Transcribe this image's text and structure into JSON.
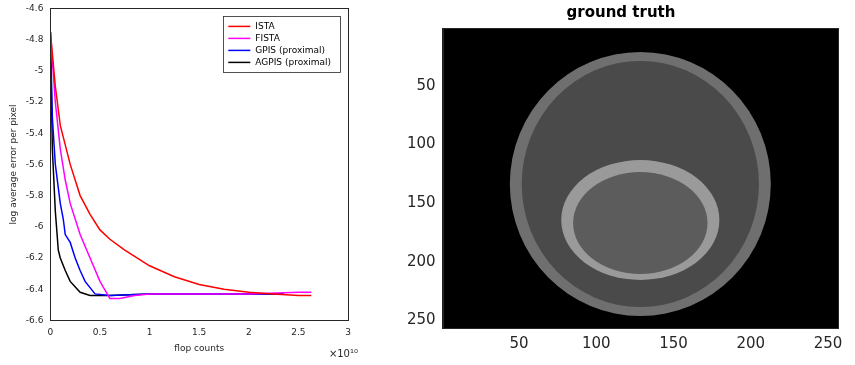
{
  "chart_data": [
    {
      "type": "line",
      "xlabel": "flop counts",
      "ylabel": "log average error per pixel",
      "xlim": [
        0,
        3
      ],
      "xticks": [
        0,
        0.5,
        1,
        1.5,
        2,
        2.5,
        3
      ],
      "ylim": [
        -6.6,
        -4.6
      ],
      "yticks": [
        -6.6,
        -6.4,
        -6.2,
        -6,
        -5.8,
        -5.6,
        -5.4,
        -5.2,
        -5,
        -4.8,
        -4.6
      ],
      "grid": false,
      "legend": "top-right",
      "annotations": [
        {
          "text": "×10¹⁰"
        }
      ],
      "series": [
        {
          "name": "ISTA",
          "color": "#ff0000",
          "x": [
            0,
            0.05,
            0.1,
            0.2,
            0.3,
            0.4,
            0.5,
            0.6,
            0.75,
            1.0,
            1.25,
            1.5,
            1.75,
            2.0,
            2.25,
            2.5,
            2.63
          ],
          "values": [
            -4.75,
            -5.1,
            -5.35,
            -5.6,
            -5.8,
            -5.92,
            -6.02,
            -6.08,
            -6.15,
            -6.25,
            -6.32,
            -6.37,
            -6.4,
            -6.42,
            -6.43,
            -6.44,
            -6.44
          ]
        },
        {
          "name": "FISTA",
          "color": "#ff00ff",
          "x": [
            0,
            0.05,
            0.1,
            0.15,
            0.2,
            0.3,
            0.4,
            0.5,
            0.6,
            0.7,
            0.85,
            1.0,
            1.5,
            2.0,
            2.5,
            2.63
          ],
          "values": [
            -4.75,
            -5.2,
            -5.5,
            -5.7,
            -5.85,
            -6.05,
            -6.2,
            -6.35,
            -6.46,
            -6.46,
            -6.44,
            -6.43,
            -6.43,
            -6.43,
            -6.42,
            -6.42
          ]
        },
        {
          "name": "GPIS (proximal)",
          "color": "#0000ff",
          "x": [
            0,
            0.02,
            0.05,
            0.08,
            0.1,
            0.13,
            0.15,
            0.2,
            0.25,
            0.3,
            0.35,
            0.45,
            0.6,
            1.0,
            1.5,
            2.0,
            2.35
          ],
          "values": [
            -4.75,
            -5.3,
            -5.6,
            -5.75,
            -5.85,
            -5.95,
            -6.05,
            -6.1,
            -6.2,
            -6.28,
            -6.35,
            -6.43,
            -6.44,
            -6.43,
            -6.43,
            -6.43,
            -6.43
          ]
        },
        {
          "name": "AGPIS (proximal)",
          "color": "#000000",
          "x": [
            0,
            0.02,
            0.05,
            0.08,
            0.1,
            0.15,
            0.2,
            0.3,
            0.4,
            0.6,
            1.0,
            1.5,
            2.0,
            2.35
          ],
          "values": [
            -4.75,
            -5.5,
            -5.9,
            -6.15,
            -6.2,
            -6.28,
            -6.35,
            -6.42,
            -6.44,
            -6.44,
            -6.43,
            -6.43,
            -6.43,
            -6.43
          ]
        }
      ]
    },
    {
      "type": "image",
      "title": "ground truth",
      "xlim": [
        0.5,
        256.5
      ],
      "ylim": [
        256.5,
        0.5
      ],
      "xticks": [
        50,
        100,
        150,
        200,
        250
      ],
      "yticks": [
        50,
        100,
        150,
        200,
        250
      ],
      "grid": false
    }
  ]
}
